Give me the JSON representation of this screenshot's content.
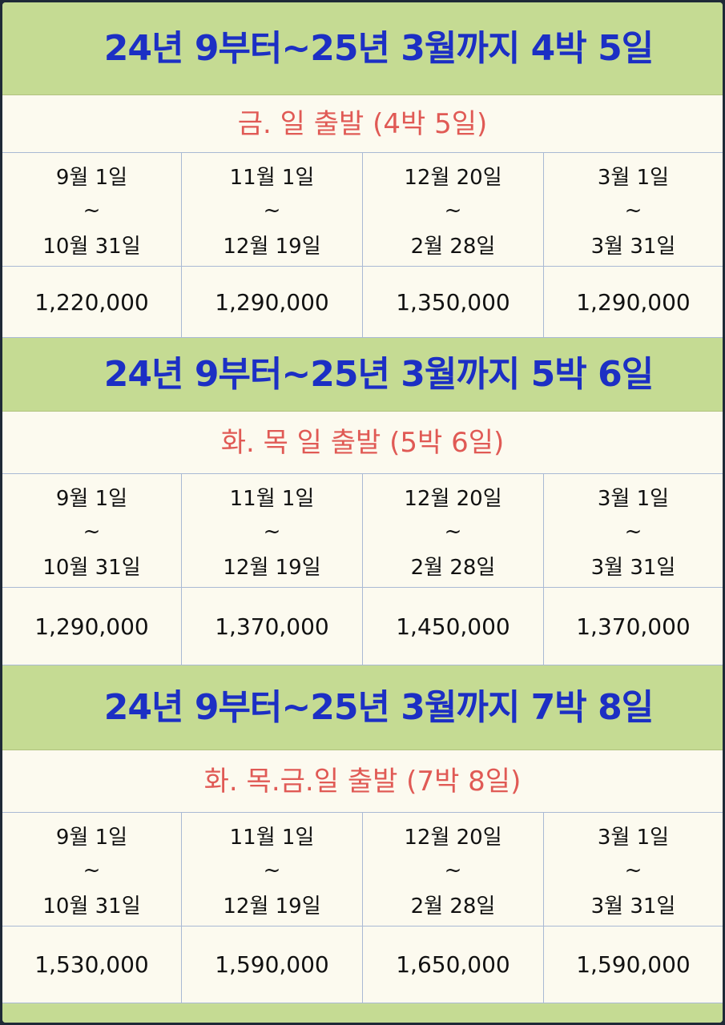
{
  "periods": [
    {
      "start": "9월 1일",
      "sep": "~",
      "end": "10월 31일"
    },
    {
      "start": "11월 1일",
      "sep": "~",
      "end": "12월 19일"
    },
    {
      "start": "12월 20일",
      "sep": "~",
      "end": "2월 28일"
    },
    {
      "start": "3월 1일",
      "sep": "~",
      "end": "3월 31일"
    }
  ],
  "sections": [
    {
      "title": "24년 9부터~25년 3월까지 4박 5일",
      "subtitle": "금. 일 출발 (4박 5일)",
      "prices": [
        "1,220,000",
        "1,290,000",
        "1,350,000",
        "1,290,000"
      ]
    },
    {
      "title": "24년 9부터~25년 3월까지 5박 6일",
      "subtitle": "화. 목 일 출발 (5박 6일)",
      "prices": [
        "1,290,000",
        "1,370,000",
        "1,450,000",
        "1,370,000"
      ]
    },
    {
      "title": "24년 9부터~25년 3월까지 7박 8일",
      "subtitle": "화. 목.금.일 출발 (7박 8일)",
      "prices": [
        "1,530,000",
        "1,590,000",
        "1,650,000",
        "1,590,000"
      ]
    }
  ]
}
